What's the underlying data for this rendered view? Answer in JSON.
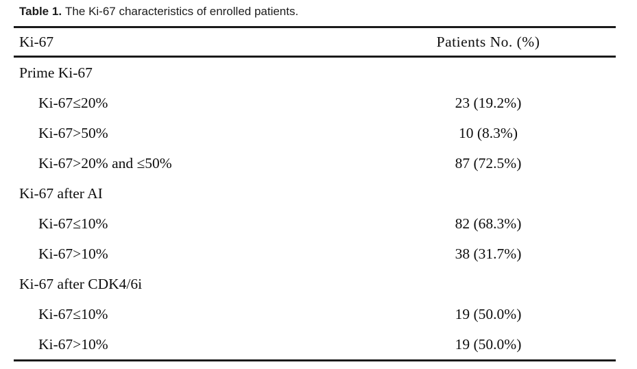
{
  "caption": {
    "label": "Table 1.",
    "text": "The Ki-67 characteristics of enrolled patients."
  },
  "table": {
    "columns": [
      "Ki-67",
      "Patients No. (%)"
    ],
    "rows": [
      {
        "label": "Prime Ki-67",
        "value": "",
        "indent": false
      },
      {
        "label": "Ki-67≤20%",
        "value": "23 (19.2%)",
        "indent": true
      },
      {
        "label": "Ki-67>50%",
        "value": "10 (8.3%)",
        "indent": true
      },
      {
        "label": "Ki-67>20% and ≤50%",
        "value": "87 (72.5%)",
        "indent": true
      },
      {
        "label": "Ki-67 after AI",
        "value": "",
        "indent": false
      },
      {
        "label": "Ki-67≤10%",
        "value": "82 (68.3%)",
        "indent": true
      },
      {
        "label": "Ki-67>10%",
        "value": "38 (31.7%)",
        "indent": true
      },
      {
        "label": "Ki-67 after CDK4/6i",
        "value": "",
        "indent": false
      },
      {
        "label": "Ki-67≤10%",
        "value": "19 (50.0%)",
        "indent": true
      },
      {
        "label": "Ki-67>10%",
        "value": "19 (50.0%)",
        "indent": true
      }
    ]
  }
}
